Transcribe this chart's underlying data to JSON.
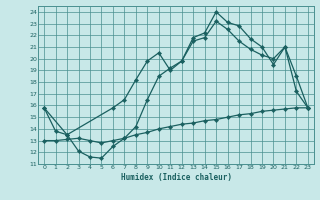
{
  "xlabel": "Humidex (Indice chaleur)",
  "bg_color": "#c8e8e8",
  "grid_color": "#4a9090",
  "line_color": "#1a6060",
  "xlim": [
    -0.5,
    23.5
  ],
  "ylim": [
    11,
    24.5
  ],
  "xticks": [
    0,
    1,
    2,
    3,
    4,
    5,
    6,
    7,
    8,
    9,
    10,
    11,
    12,
    13,
    14,
    15,
    16,
    17,
    18,
    19,
    20,
    21,
    22,
    23
  ],
  "yticks": [
    11,
    12,
    13,
    14,
    15,
    16,
    17,
    18,
    19,
    20,
    21,
    22,
    23,
    24
  ],
  "line1_x": [
    0,
    1,
    2,
    3,
    4,
    5,
    6,
    7,
    8,
    9,
    10,
    11,
    12,
    13,
    14,
    15,
    16,
    17,
    18,
    19,
    20,
    21,
    22,
    23
  ],
  "line1_y": [
    15.8,
    13.8,
    13.5,
    12.1,
    11.6,
    11.5,
    12.5,
    13.2,
    14.2,
    16.5,
    18.5,
    19.2,
    19.8,
    21.8,
    22.2,
    24.0,
    23.1,
    22.8,
    21.7,
    21.0,
    19.5,
    21.0,
    17.2,
    15.8
  ],
  "line2_x": [
    0,
    2,
    6,
    7,
    8,
    9,
    10,
    11,
    12,
    13,
    14,
    15,
    16,
    17,
    18,
    19,
    20,
    21,
    22,
    23
  ],
  "line2_y": [
    15.8,
    13.5,
    15.8,
    16.5,
    18.2,
    19.8,
    20.5,
    19.0,
    19.8,
    21.5,
    21.8,
    23.2,
    22.5,
    21.5,
    20.8,
    20.3,
    20.0,
    21.0,
    18.5,
    15.8
  ],
  "line3_x": [
    0,
    1,
    2,
    3,
    4,
    5,
    6,
    7,
    8,
    9,
    10,
    11,
    12,
    13,
    14,
    15,
    16,
    17,
    18,
    19,
    20,
    21,
    22,
    23
  ],
  "line3_y": [
    13.0,
    13.0,
    13.1,
    13.2,
    13.0,
    12.8,
    13.0,
    13.2,
    13.5,
    13.7,
    14.0,
    14.2,
    14.4,
    14.5,
    14.7,
    14.8,
    15.0,
    15.2,
    15.3,
    15.5,
    15.6,
    15.7,
    15.8,
    15.8
  ]
}
